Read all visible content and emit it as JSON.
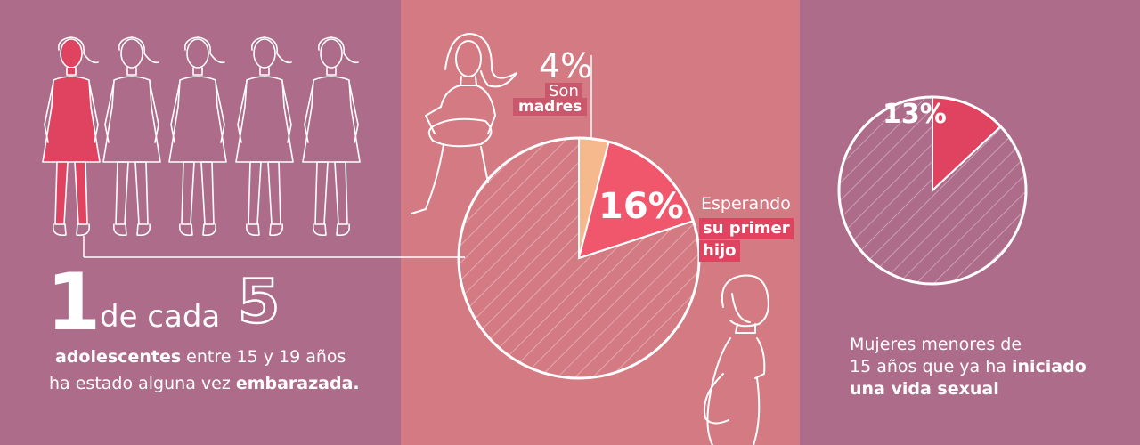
{
  "left": {
    "number_one": "1",
    "de_cada": "de cada",
    "number_five": "5",
    "line1_bold": "adolescentes",
    "line1_rest": " entre 15 y 19 años",
    "line2_rest": "ha estado alguna vez ",
    "line2_bold": "embarazada.",
    "figure_count": 5,
    "highlighted_count": 1
  },
  "colors": {
    "left_bg": "#AE6C8B",
    "mid_bg": "#D47A83",
    "right_bg": "#AE6C8B",
    "accent": "#E0435F",
    "peach": "#F6B98E",
    "line": "#FFFFFF"
  },
  "chart_data": [
    {
      "type": "pie",
      "slices": [
        {
          "value": 4,
          "label": "4%",
          "color": "#F6B98E"
        },
        {
          "value": 16,
          "label": "16%",
          "color": "#F0566C"
        },
        {
          "value": 80,
          "label": "",
          "color": "hatched"
        }
      ],
      "annotations": {
        "madres_pct": "4%",
        "madres_line1": "Son",
        "madres_line2": "madres",
        "esperando_line1": "Esperando",
        "esperando_line2": "su primer",
        "esperando_line3": "hijo"
      }
    },
    {
      "type": "pie",
      "slices": [
        {
          "value": 13,
          "label": "13%",
          "color": "#E0435F"
        },
        {
          "value": 87,
          "label": "",
          "color": "hatched"
        }
      ],
      "caption_line1": "Mujeres menores de",
      "caption_line2_rest": "15 años que ya ha ",
      "caption_line2_bold": "iniciado",
      "caption_line3_bold": "una vida sexual"
    }
  ]
}
